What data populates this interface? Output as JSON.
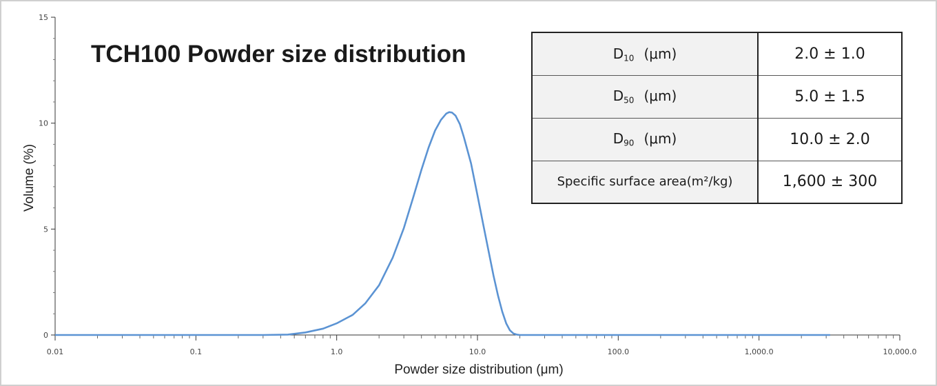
{
  "chart_data": {
    "type": "line",
    "title": "TCH100 Powder size distribution",
    "xlabel": "Powder size distribution (μm)",
    "ylabel": "Volume (%)",
    "x_scale": "log",
    "xlim": [
      0.01,
      10000
    ],
    "ylim": [
      0,
      15
    ],
    "x_tick_labels": [
      "0.01",
      "0.1",
      "1.0",
      "10.0",
      "100.0",
      "1,000.0",
      "10,000.0"
    ],
    "y_tick_labels": [
      "0",
      "5",
      "10",
      "15"
    ],
    "y_ticks": [
      0,
      5,
      10,
      15
    ],
    "grid": false,
    "color": "#5b93d3",
    "series": [
      {
        "x": [
          0.01,
          0.1,
          0.3,
          0.45,
          0.6,
          0.8,
          1.0,
          1.3,
          1.6,
          2.0,
          2.5,
          3.0,
          3.5,
          4.0,
          4.5,
          5.0,
          5.5,
          6.0,
          6.3,
          6.6,
          7.0,
          7.5,
          8.0,
          9.0,
          10.0,
          11.0,
          12.0,
          13.0,
          14.0,
          15.0,
          16.0,
          17.0,
          18.0,
          19.0,
          20.0,
          25.0,
          100.0,
          1000.0,
          3200.0
        ],
        "y": [
          0,
          0,
          0,
          0.02,
          0.12,
          0.3,
          0.55,
          0.95,
          1.5,
          2.35,
          3.65,
          5.05,
          6.5,
          7.8,
          8.85,
          9.65,
          10.15,
          10.45,
          10.52,
          10.5,
          10.35,
          9.95,
          9.35,
          8.1,
          6.6,
          5.2,
          3.95,
          2.8,
          1.85,
          1.1,
          0.55,
          0.22,
          0.07,
          0.02,
          0,
          0,
          0,
          0,
          0
        ]
      }
    ]
  },
  "spec_table": {
    "rows": [
      {
        "label": "D",
        "sub": "10",
        "unit": "(μm)",
        "value": "2.0 ± 1.0"
      },
      {
        "label": "D",
        "sub": "50",
        "unit": "(μm)",
        "value": "5.0 ± 1.5"
      },
      {
        "label": "D",
        "sub": "90",
        "unit": "(μm)",
        "value": "10.0 ± 2.0"
      },
      {
        "label": "Specific surface area(m²/kg)",
        "value": "1,600 ± 300"
      }
    ]
  }
}
